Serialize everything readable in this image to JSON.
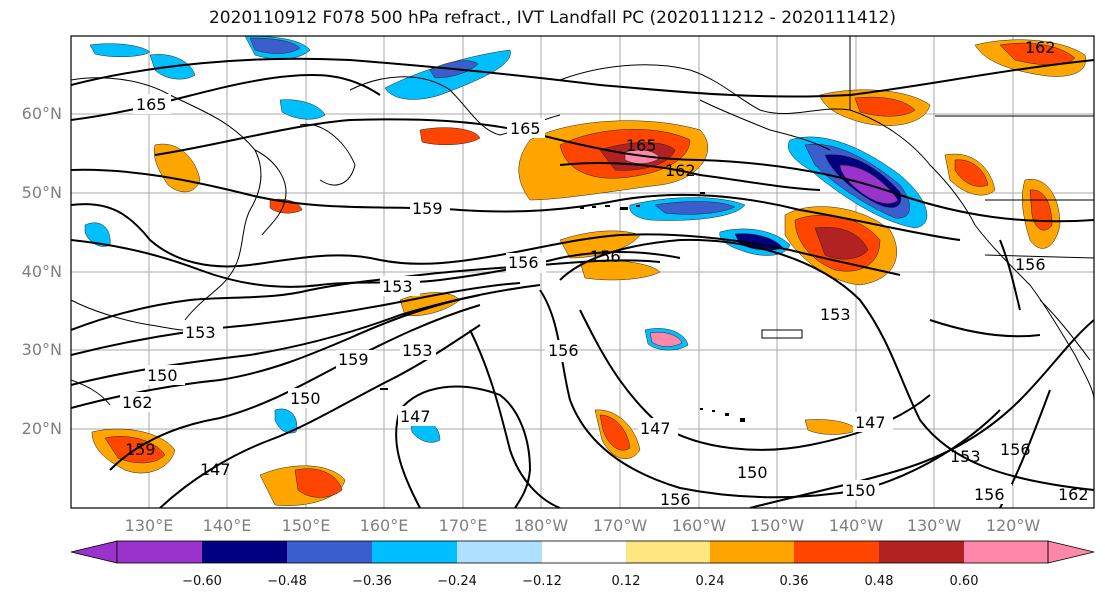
{
  "title": "2020110912 F078 500 hPa refract., IVT Landfall PC (2020111212 - 2020111412)",
  "map": {
    "lat_ticks": [
      "60°N",
      "50°N",
      "40°N",
      "30°N",
      "20°N"
    ],
    "lon_ticks": [
      "130°E",
      "140°E",
      "150°E",
      "160°E",
      "170°E",
      "180°W",
      "170°W",
      "160°W",
      "150°W",
      "140°W",
      "130°W",
      "120°W"
    ]
  },
  "contour_labels": [
    "165",
    "165",
    "165",
    "162",
    "162",
    "159",
    "159",
    "156",
    "156",
    "156",
    "156",
    "156",
    "153",
    "153",
    "153",
    "153",
    "153",
    "150",
    "150",
    "150",
    "150",
    "147",
    "147",
    "147",
    "147",
    "162",
    "159",
    "162",
    "156",
    "156"
  ],
  "colorbar": {
    "labels": [
      "−0.60",
      "−0.48",
      "−0.36",
      "−0.24",
      "−0.12",
      "0.12",
      "0.24",
      "0.36",
      "0.48",
      "0.60"
    ],
    "colors": [
      "#9933cc",
      "#000080",
      "#3a5fcd",
      "#00bfff",
      "#b0e0ff",
      "#ffffff",
      "#ffe680",
      "#ffa500",
      "#ff4500",
      "#b22222",
      "#ff88aa"
    ]
  }
}
